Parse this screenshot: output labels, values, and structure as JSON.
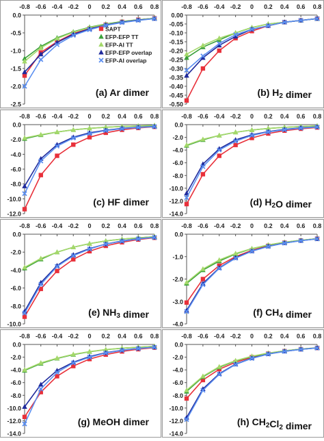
{
  "figure": {
    "series_styles": [
      {
        "name": "SAPT",
        "color": "#e8303a",
        "marker": "square"
      },
      {
        "name": "EFP-EFP TT",
        "color": "#3aa03a",
        "marker": "triangle"
      },
      {
        "name": "EFP-AI TT",
        "color": "#a4d86a",
        "marker": "triangle"
      },
      {
        "name": "EFP-EFP overlap",
        "color": "#1f2a9c",
        "marker": "triangle"
      },
      {
        "name": "EFP-AI overlap",
        "color": "#5a8ef0",
        "marker": "x"
      }
    ],
    "legend_panel": 0,
    "legend_placement": "center-right"
  },
  "chart_data": [
    {
      "type": "line",
      "title": "(a) Ar dimer",
      "x": [
        -0.8,
        -0.6,
        -0.4,
        -0.2,
        0,
        0.2,
        0.4,
        0.6,
        0.8
      ],
      "ylim": [
        -2.5,
        0.0
      ],
      "yticks": [
        "0.0",
        "-0.5",
        "-1.0",
        "-1.5",
        "-2.0",
        "-2.5"
      ],
      "xticks": [
        "-0.8",
        "-0.6",
        "-0.4",
        "-0.2",
        "0",
        "0.2",
        "0.4",
        "0.6",
        "0.8"
      ],
      "series": [
        {
          "name": "SAPT",
          "values": [
            -1.7,
            -1.05,
            -0.75,
            -0.52,
            -0.38,
            -0.27,
            -0.19,
            -0.13,
            -0.09
          ]
        },
        {
          "name": "EFP-EFP TT",
          "values": [
            -1.22,
            -0.88,
            -0.64,
            -0.47,
            -0.34,
            -0.25,
            -0.18,
            -0.13,
            -0.09
          ]
        },
        {
          "name": "EFP-AI TT",
          "values": [
            -1.3,
            -0.92,
            -0.66,
            -0.48,
            -0.35,
            -0.26,
            -0.19,
            -0.13,
            -0.09
          ]
        },
        {
          "name": "EFP-EFP overlap",
          "values": [
            -1.6,
            -1.1,
            -0.77,
            -0.54,
            -0.39,
            -0.28,
            -0.2,
            -0.14,
            -0.1
          ]
        },
        {
          "name": "EFP-AI overlap",
          "values": [
            -2.0,
            -1.25,
            -0.83,
            -0.57,
            -0.41,
            -0.29,
            -0.21,
            -0.15,
            -0.1
          ]
        }
      ]
    },
    {
      "type": "line",
      "title": "(b) H2 dimer",
      "x": [
        -0.8,
        -0.6,
        -0.4,
        -0.2,
        0,
        0.2,
        0.4,
        0.6,
        0.8
      ],
      "ylim": [
        -0.5,
        0.0
      ],
      "yticks": [
        "0.00",
        "-0.05",
        "-0.10",
        "-0.15",
        "-0.20",
        "-0.25",
        "-0.30",
        "-0.35",
        "-0.40",
        "-0.45",
        "-0.50"
      ],
      "xticks": [
        "-0.8",
        "-0.6",
        "-0.4",
        "-0.2",
        "0",
        "0.2",
        "0.4",
        "0.6",
        "0.8"
      ],
      "series": [
        {
          "name": "SAPT",
          "values": [
            -0.48,
            -0.3,
            -0.2,
            -0.13,
            -0.09,
            -0.06,
            -0.04,
            -0.03,
            -0.02
          ]
        },
        {
          "name": "EFP-EFP TT",
          "values": [
            -0.24,
            -0.18,
            -0.14,
            -0.1,
            -0.07,
            -0.05,
            -0.04,
            -0.03,
            -0.02
          ]
        },
        {
          "name": "EFP-AI TT",
          "values": [
            -0.22,
            -0.17,
            -0.13,
            -0.1,
            -0.07,
            -0.05,
            -0.04,
            -0.03,
            -0.02
          ]
        },
        {
          "name": "EFP-EFP overlap",
          "values": [
            -0.34,
            -0.24,
            -0.17,
            -0.12,
            -0.08,
            -0.06,
            -0.04,
            -0.03,
            -0.02
          ]
        },
        {
          "name": "EFP-AI overlap",
          "values": [
            -0.31,
            -0.23,
            -0.16,
            -0.11,
            -0.08,
            -0.06,
            -0.04,
            -0.03,
            -0.02
          ]
        }
      ]
    },
    {
      "type": "line",
      "title": "(c) HF dimer",
      "x": [
        -0.8,
        -0.6,
        -0.4,
        -0.2,
        0,
        0.2,
        0.4,
        0.6,
        0.8
      ],
      "ylim": [
        -12.0,
        0.0
      ],
      "yticks": [
        "0.0",
        "-2.0",
        "-4.0",
        "-6.0",
        "-8.0",
        "-10.0",
        "-12.0"
      ],
      "xticks": [
        "-0.8",
        "-0.6",
        "-0.4",
        "-0.2",
        "0",
        "0.2",
        "0.4",
        "0.6",
        "0.8"
      ],
      "series": [
        {
          "name": "SAPT",
          "values": [
            -11.4,
            -6.8,
            -4.2,
            -2.7,
            -1.7,
            -1.1,
            -0.7,
            -0.45,
            -0.3
          ]
        },
        {
          "name": "EFP-EFP TT",
          "values": [
            -1.9,
            -1.4,
            -1.0,
            -0.7,
            -0.5,
            -0.35,
            -0.25,
            -0.18,
            -0.12
          ]
        },
        {
          "name": "EFP-AI TT",
          "values": [
            -1.8,
            -1.35,
            -1.0,
            -0.7,
            -0.5,
            -0.35,
            -0.25,
            -0.18,
            -0.12
          ]
        },
        {
          "name": "EFP-EFP overlap",
          "values": [
            -8.3,
            -4.6,
            -2.7,
            -1.7,
            -1.1,
            -0.75,
            -0.5,
            -0.35,
            -0.25
          ]
        },
        {
          "name": "EFP-AI overlap",
          "values": [
            -9.3,
            -4.9,
            -2.9,
            -1.8,
            -1.2,
            -0.8,
            -0.55,
            -0.38,
            -0.27
          ]
        }
      ]
    },
    {
      "type": "line",
      "title": "(d) H2O dimer",
      "x": [
        -0.8,
        -0.6,
        -0.4,
        -0.2,
        0,
        0.2,
        0.4,
        0.6,
        0.8
      ],
      "ylim": [
        -14.0,
        0.0
      ],
      "yticks": [
        "0.0",
        "-2.0",
        "-4.0",
        "-6.0",
        "-8.0",
        "-10.0",
        "-12.0",
        "-14.0"
      ],
      "xticks": [
        "-0.8",
        "-0.6",
        "-0.4",
        "-0.2",
        "0",
        "0.2",
        "0.4",
        "0.6",
        "0.8"
      ],
      "series": [
        {
          "name": "SAPT",
          "values": [
            -12.5,
            -7.8,
            -4.9,
            -3.2,
            -2.1,
            -1.4,
            -0.95,
            -0.65,
            -0.45
          ]
        },
        {
          "name": "EFP-EFP TT",
          "values": [
            -3.3,
            -2.4,
            -1.7,
            -1.2,
            -0.85,
            -0.6,
            -0.42,
            -0.3,
            -0.2
          ]
        },
        {
          "name": "EFP-AI TT",
          "values": [
            -3.2,
            -2.3,
            -1.7,
            -1.2,
            -0.85,
            -0.6,
            -0.42,
            -0.3,
            -0.2
          ]
        },
        {
          "name": "EFP-EFP overlap",
          "values": [
            -10.8,
            -6.2,
            -3.8,
            -2.4,
            -1.6,
            -1.1,
            -0.75,
            -0.5,
            -0.35
          ]
        },
        {
          "name": "EFP-AI overlap",
          "values": [
            -11.5,
            -6.6,
            -4.0,
            -2.6,
            -1.7,
            -1.15,
            -0.8,
            -0.55,
            -0.38
          ]
        }
      ]
    },
    {
      "type": "line",
      "title": "(e) NH3 dimer",
      "x": [
        -0.8,
        -0.6,
        -0.4,
        -0.2,
        0,
        0.2,
        0.4,
        0.6,
        0.8
      ],
      "ylim": [
        -10.0,
        0.0
      ],
      "yticks": [
        "0.0",
        "-2.0",
        "-4.0",
        "-6.0",
        "-8.0",
        "-10.0"
      ],
      "xticks": [
        "-0.8",
        "-0.6",
        "-0.4",
        "-0.2",
        "0",
        "0.2",
        "0.4",
        "0.6",
        "0.8"
      ],
      "series": [
        {
          "name": "SAPT",
          "values": [
            -9.2,
            -6.1,
            -4.1,
            -2.8,
            -1.9,
            -1.3,
            -0.9,
            -0.6,
            -0.4
          ]
        },
        {
          "name": "EFP-EFP TT",
          "values": [
            -3.8,
            -2.8,
            -2.0,
            -1.45,
            -1.05,
            -0.75,
            -0.55,
            -0.4,
            -0.28
          ]
        },
        {
          "name": "EFP-AI TT",
          "values": [
            -3.7,
            -2.7,
            -2.0,
            -1.45,
            -1.05,
            -0.75,
            -0.55,
            -0.4,
            -0.28
          ]
        },
        {
          "name": "EFP-EFP overlap",
          "values": [
            -8.6,
            -5.4,
            -3.5,
            -2.3,
            -1.6,
            -1.1,
            -0.75,
            -0.5,
            -0.35
          ]
        },
        {
          "name": "EFP-AI overlap",
          "values": [
            -8.8,
            -5.6,
            -3.6,
            -2.4,
            -1.65,
            -1.1,
            -0.78,
            -0.52,
            -0.36
          ]
        }
      ]
    },
    {
      "type": "line",
      "title": "(f) CH4 dimer",
      "x": [
        -0.8,
        -0.6,
        -0.4,
        -0.2,
        0,
        0.2,
        0.4,
        0.6,
        0.8
      ],
      "ylim": [
        -4.0,
        0.0
      ],
      "yticks": [
        "0.0",
        "-1.0",
        "-2.0",
        "-3.0",
        "-4.0"
      ],
      "xticks": [
        "-0.8",
        "-0.6",
        "-0.4",
        "-0.2",
        "0",
        "0.2",
        "0.4",
        "0.6",
        "0.8"
      ],
      "series": [
        {
          "name": "SAPT",
          "values": [
            -3.05,
            -2.0,
            -1.4,
            -1.0,
            -0.72,
            -0.52,
            -0.38,
            -0.28,
            -0.2
          ]
        },
        {
          "name": "EFP-EFP TT",
          "values": [
            -2.2,
            -1.6,
            -1.2,
            -0.88,
            -0.65,
            -0.48,
            -0.36,
            -0.27,
            -0.2
          ]
        },
        {
          "name": "EFP-AI TT",
          "values": [
            -2.15,
            -1.55,
            -1.15,
            -0.86,
            -0.64,
            -0.48,
            -0.36,
            -0.27,
            -0.2
          ]
        },
        {
          "name": "EFP-EFP overlap",
          "values": [
            -3.4,
            -2.2,
            -1.5,
            -1.05,
            -0.75,
            -0.54,
            -0.39,
            -0.29,
            -0.21
          ]
        },
        {
          "name": "EFP-AI overlap",
          "values": [
            -3.45,
            -2.25,
            -1.52,
            -1.07,
            -0.76,
            -0.55,
            -0.4,
            -0.29,
            -0.21
          ]
        }
      ]
    },
    {
      "type": "line",
      "title": "(g) MeOH dimer",
      "x": [
        -0.8,
        -0.6,
        -0.4,
        -0.2,
        0,
        0.2,
        0.4,
        0.6,
        0.8
      ],
      "ylim": [
        -14.0,
        0.0
      ],
      "yticks": [
        "0.0",
        "-2.0",
        "-4.0",
        "-6.0",
        "-8.0",
        "-10.0",
        "-12.0",
        "-14.0"
      ],
      "xticks": [
        "-0.8",
        "-0.6",
        "-0.4",
        "-0.2",
        "0",
        "0.2",
        "0.4",
        "0.6",
        "0.8"
      ],
      "series": [
        {
          "name": "SAPT",
          "values": [
            -11.4,
            -7.5,
            -5.0,
            -3.4,
            -2.3,
            -1.6,
            -1.1,
            -0.75,
            -0.5
          ]
        },
        {
          "name": "EFP-EFP TT",
          "values": [
            -4.1,
            -3.0,
            -2.2,
            -1.6,
            -1.15,
            -0.82,
            -0.6,
            -0.43,
            -0.3
          ]
        },
        {
          "name": "EFP-AI TT",
          "values": [
            -4.0,
            -2.9,
            -2.15,
            -1.55,
            -1.12,
            -0.8,
            -0.58,
            -0.42,
            -0.3
          ]
        },
        {
          "name": "EFP-EFP overlap",
          "values": [
            -9.8,
            -6.3,
            -4.1,
            -2.8,
            -1.9,
            -1.3,
            -0.9,
            -0.62,
            -0.43
          ]
        },
        {
          "name": "EFP-AI overlap",
          "values": [
            -12.5,
            -7.0,
            -4.4,
            -2.9,
            -2.0,
            -1.35,
            -0.93,
            -0.64,
            -0.44
          ]
        }
      ]
    },
    {
      "type": "line",
      "title": "(h) CH2Cl2 dimer",
      "x": [
        -0.8,
        -0.6,
        -0.4,
        -0.2,
        0,
        0.2,
        0.4,
        0.6,
        0.8
      ],
      "ylim": [
        -14.0,
        0.0
      ],
      "yticks": [
        "0.0",
        "-2.0",
        "-4.0",
        "-6.0",
        "-8.0",
        "-10.0",
        "-12.0",
        "-14.0"
      ],
      "xticks": [
        "-0.8",
        "-0.6",
        "-0.4",
        "-0.2",
        "0",
        "0.2",
        "0.4",
        "0.6",
        "0.8"
      ],
      "series": [
        {
          "name": "SAPT",
          "values": [
            -8.5,
            -5.6,
            -3.9,
            -2.8,
            -2.0,
            -1.45,
            -1.05,
            -0.75,
            -0.55
          ]
        },
        {
          "name": "EFP-EFP TT",
          "values": [
            -7.4,
            -5.1,
            -3.6,
            -2.6,
            -1.9,
            -1.4,
            -1.0,
            -0.73,
            -0.53
          ]
        },
        {
          "name": "EFP-AI TT",
          "values": [
            -7.2,
            -5.0,
            -3.5,
            -2.55,
            -1.85,
            -1.35,
            -1.0,
            -0.72,
            -0.52
          ]
        },
        {
          "name": "EFP-EFP overlap",
          "values": [
            -11.5,
            -7.0,
            -4.6,
            -3.1,
            -2.15,
            -1.5,
            -1.08,
            -0.77,
            -0.55
          ]
        },
        {
          "name": "EFP-AI overlap",
          "values": [
            -11.8,
            -7.2,
            -4.7,
            -3.15,
            -2.2,
            -1.52,
            -1.1,
            -0.78,
            -0.56
          ]
        }
      ]
    }
  ]
}
